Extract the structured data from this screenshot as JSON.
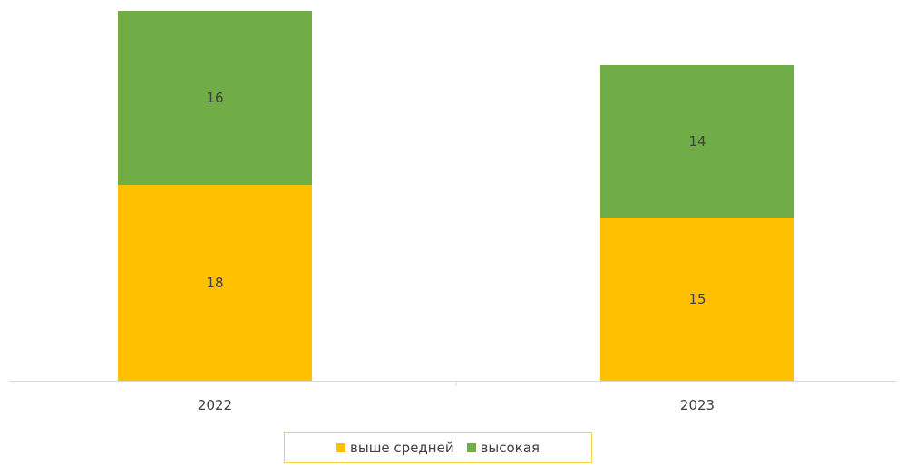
{
  "chart_data": {
    "type": "bar",
    "stacked": true,
    "categories": [
      "2022",
      "2023"
    ],
    "series": [
      {
        "name": "выше средней",
        "values": [
          18,
          15
        ],
        "color": "#FFC000"
      },
      {
        "name": "высокая",
        "values": [
          16,
          14
        ],
        "color": "#70AD47"
      }
    ],
    "title": "",
    "xlabel": "",
    "ylabel": "",
    "ylim": [
      0,
      34
    ],
    "grid": false,
    "legend_position": "bottom",
    "data_labels": true,
    "axis_color": "#d9d9d9",
    "text_color": "#404040"
  }
}
